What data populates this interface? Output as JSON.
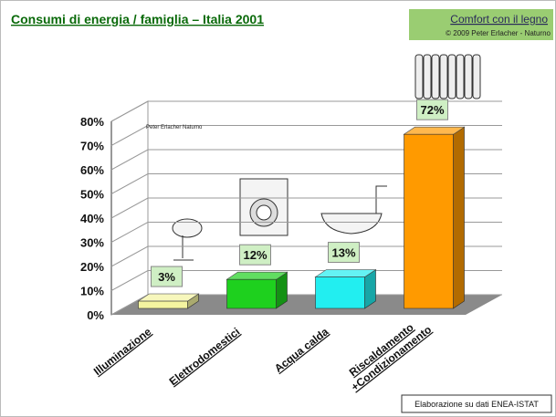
{
  "chart_data": {
    "type": "bar3d",
    "title": "Consumi di energia / famiglia – Italia 2001",
    "categories": [
      "Illuminazione",
      "Elettrodomestici",
      "Acqua calda",
      "Riscaldamento +Condizionamento"
    ],
    "values": [
      3,
      12,
      13,
      72
    ],
    "value_labels": [
      "3%",
      "12%",
      "13%",
      "72%"
    ],
    "colors": [
      "#f4f4a0",
      "#1ed01e",
      "#22eef0",
      "#ff9a00"
    ],
    "ylim": [
      0,
      80
    ],
    "yticks": [
      {
        "value": 0,
        "label": "0%"
      },
      {
        "value": 10,
        "label": "10%"
      },
      {
        "value": 20,
        "label": "20%"
      },
      {
        "value": 30,
        "label": "30%"
      },
      {
        "value": 40,
        "label": "40%"
      },
      {
        "value": 50,
        "label": "50%"
      },
      {
        "value": 60,
        "label": "60%"
      },
      {
        "value": 70,
        "label": "70%"
      },
      {
        "value": 80,
        "label": "80%"
      }
    ],
    "grid": true,
    "watermark": "Peter Erlacher Naturno"
  },
  "brand": {
    "title": "Comfort con il legno",
    "copyright": "© 2009 Peter Erlacher - Naturno"
  },
  "source": "Elaborazione su dati ENEA-ISTAT"
}
